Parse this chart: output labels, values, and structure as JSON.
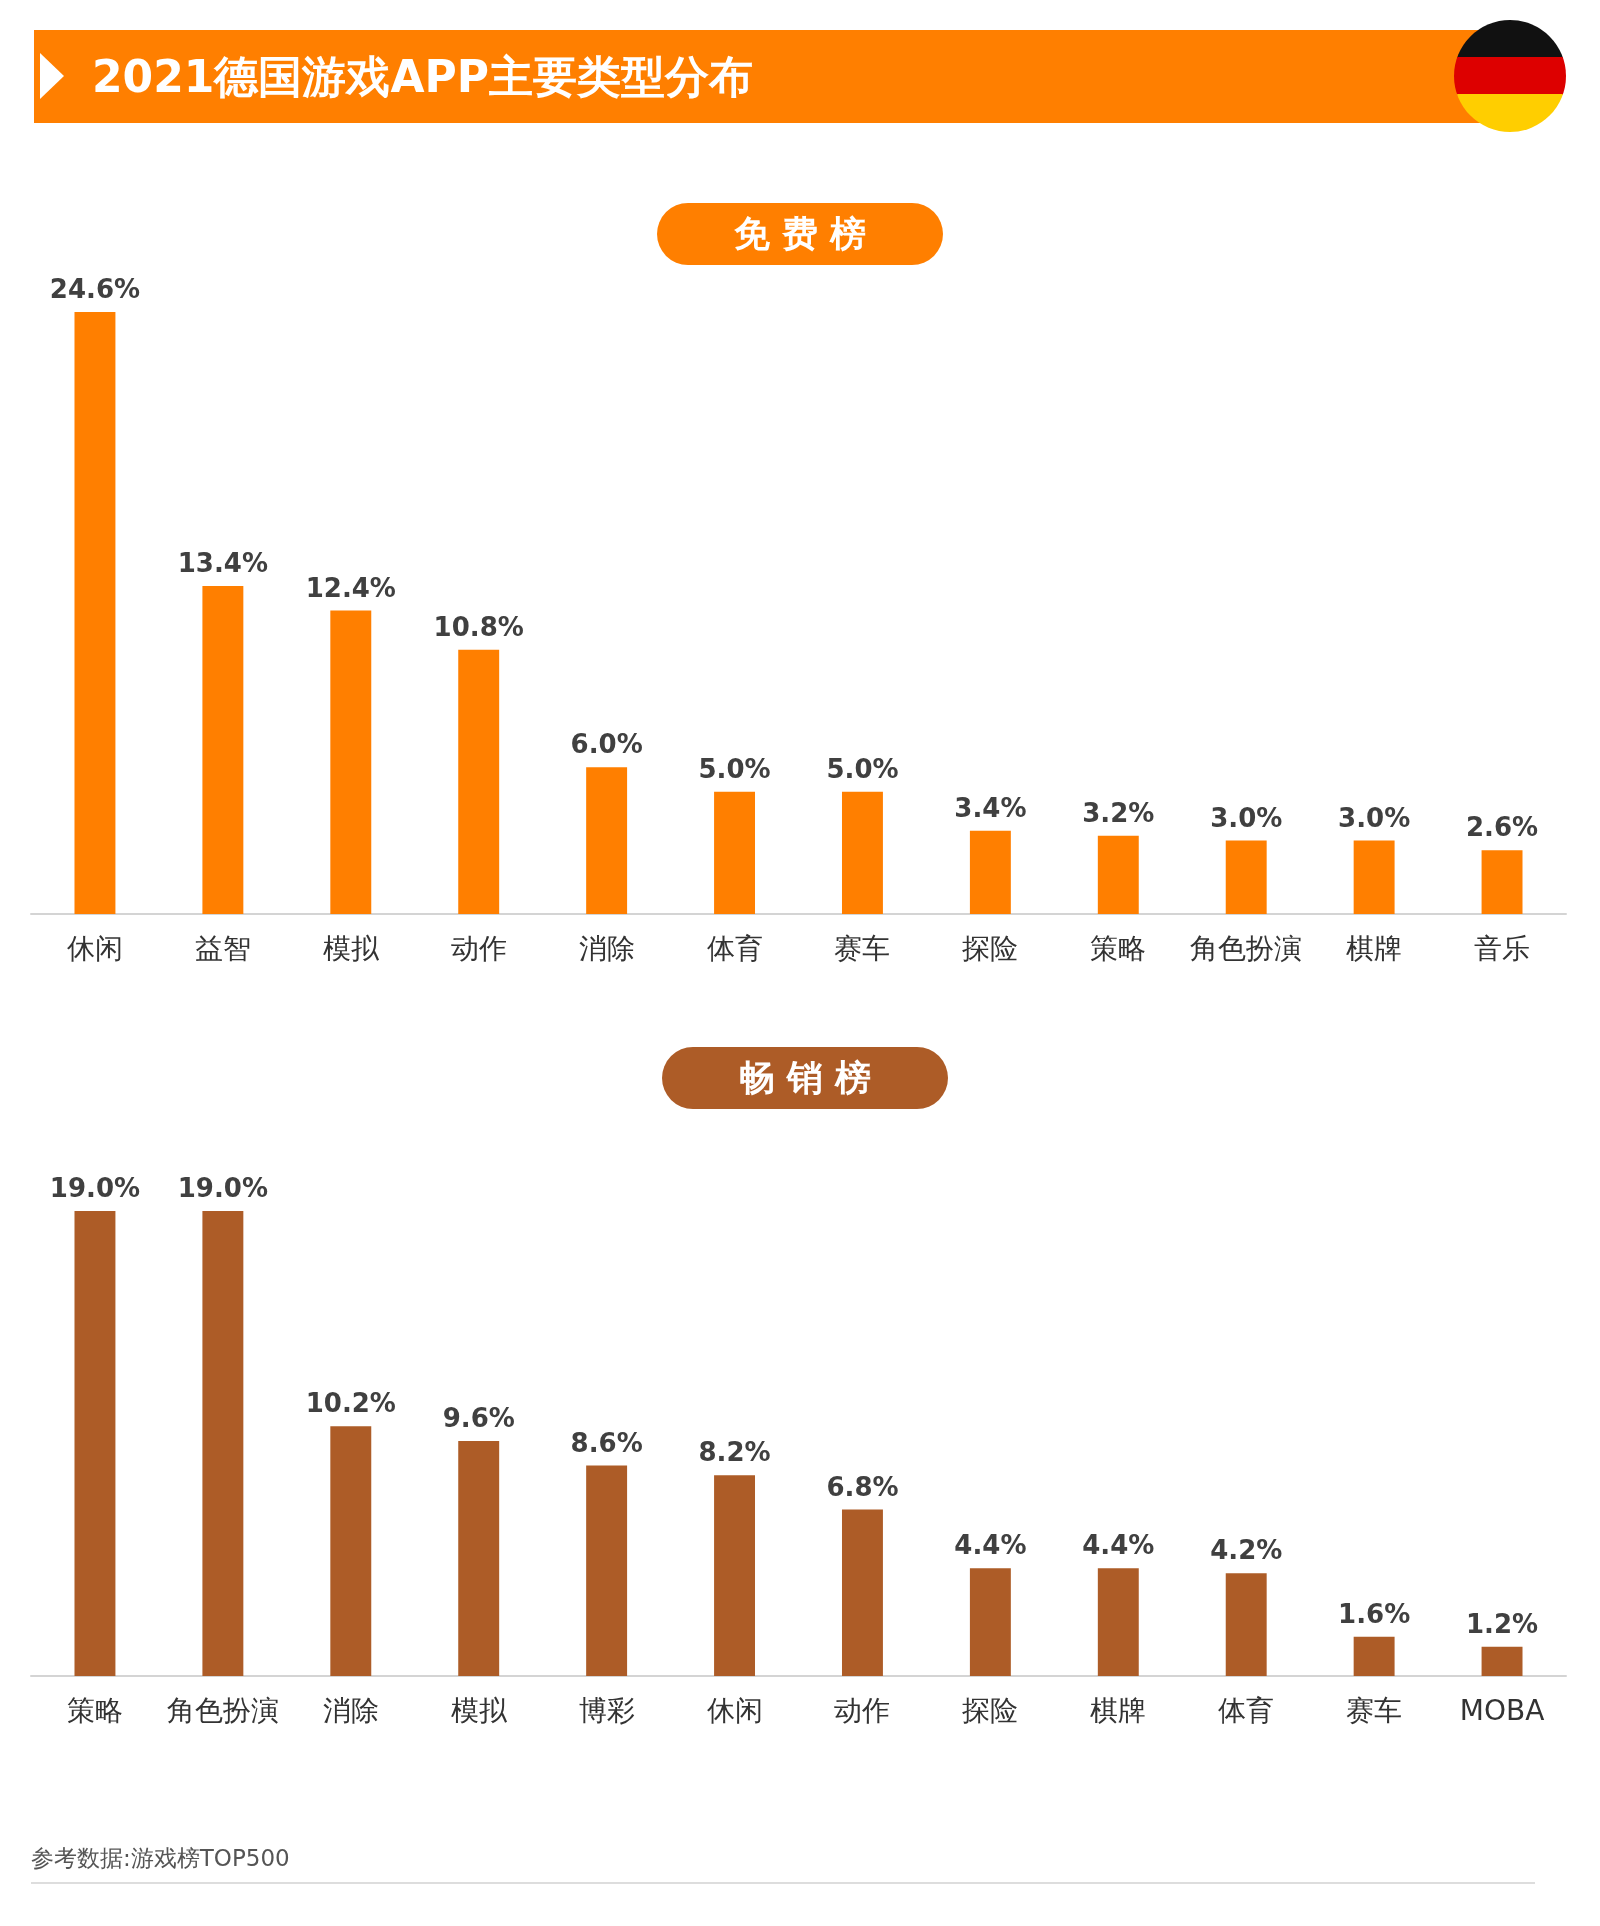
{
  "chart_data": [
    {
      "type": "bar",
      "title": "2021德国游戏APP主要类型分布",
      "subtitle": "免费榜",
      "categories": [
        "休闲",
        "益智",
        "模拟",
        "动作",
        "消除",
        "体育",
        "赛车",
        "探险",
        "策略",
        "角色扮演",
        "棋牌",
        "音乐"
      ],
      "values": [
        24.6,
        13.4,
        12.4,
        10.8,
        6.0,
        5.0,
        5.0,
        3.4,
        3.2,
        3.0,
        3.0,
        2.6
      ],
      "value_labels": [
        "24.6%",
        "13.4%",
        "12.4%",
        "10.8%",
        "6.0%",
        "5.0%",
        "5.0%",
        "3.4%",
        "3.2%",
        "3.0%",
        "3.0%",
        "2.6%"
      ],
      "color": "#ff7f00"
    },
    {
      "type": "bar",
      "title": "畅销榜",
      "categories": [
        "策略",
        "角色扮演",
        "消除",
        "模拟",
        "博彩",
        "休闲",
        "动作",
        "探险",
        "棋牌",
        "体育",
        "赛车",
        "MOBA"
      ],
      "values": [
        19.0,
        19.0,
        10.2,
        9.6,
        8.6,
        8.2,
        6.8,
        4.4,
        4.4,
        4.2,
        1.6,
        1.2
      ],
      "value_labels": [
        "19.0%",
        "19.0%",
        "10.2%",
        "9.6%",
        "8.6%",
        "8.2%",
        "6.8%",
        "4.4%",
        "4.4%",
        "4.2%",
        "1.6%",
        "1.2%"
      ],
      "color": "#ad5c27",
      "annotations": [
        "参考数据:游戏榜TOP500"
      ]
    }
  ]
}
